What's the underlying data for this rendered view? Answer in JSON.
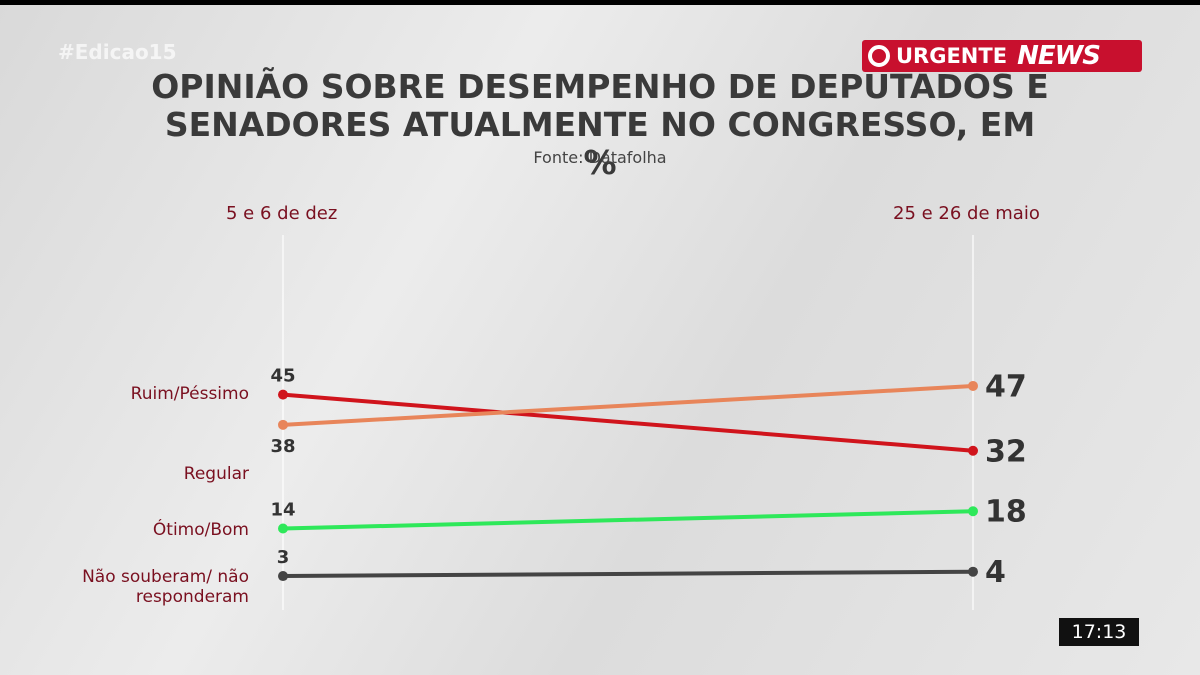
{
  "watermark": "#Edicao15",
  "logo": {
    "urgent": "URGENTE",
    "news": "NEWS"
  },
  "clock": "17:13",
  "chart_data": {
    "type": "slope",
    "title": "OPINIÃO SOBRE DESEMPENHO DE DEPUTADOS E SENADORES ATUALMENTE NO CONGRESSO, EM %",
    "subtitle": "Fonte: Datafolha",
    "categories": [
      "5 e 6 de dez",
      "25 e 26 de maio"
    ],
    "series": [
      {
        "name": "Ruim/Péssimo",
        "color": "#d0141c",
        "values": [
          45,
          32
        ]
      },
      {
        "name": "Regular",
        "color": "#e8855a",
        "values": [
          38,
          47
        ]
      },
      {
        "name": "Ótimo/Bom",
        "color": "#2ee85a",
        "values": [
          14,
          18
        ]
      },
      {
        "name": "Não souberam/ não responderam",
        "color": "#444444",
        "values": [
          3,
          4
        ]
      }
    ],
    "ylim": [
      0,
      50
    ]
  }
}
